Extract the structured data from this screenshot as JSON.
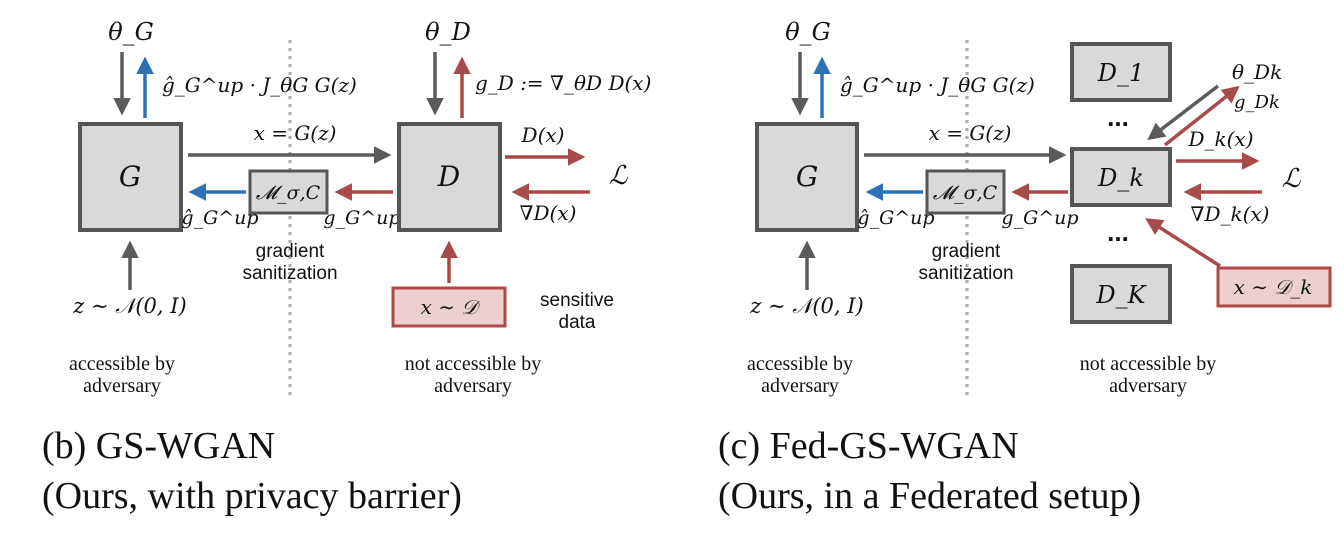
{
  "panel_b": {
    "theta_G": "θ_G",
    "gen_grad_up": "ĝ_G^up · J_θG G(z)",
    "x_eq_Gz": "x = G(z)",
    "G": "G",
    "D": "D",
    "theta_D": "θ_D",
    "gD_def": "g_D := ∇_θD D(x)",
    "D_of_x": "D(x)",
    "loss": "ℒ",
    "grad_D": "∇D(x)",
    "g_up": "g_G^up",
    "ghat_up": "ĝ_G^up",
    "mech": "𝓜_σ,C",
    "sanitization_1": "gradient",
    "sanitization_2": "sanitization",
    "z_dist": "z ∼ 𝒩(0, I)",
    "x_dist": "x ∼ 𝒟",
    "sensitive_1": "sensitive",
    "sensitive_2": "data",
    "accessible_1": "accessible by",
    "accessible_2": "adversary",
    "not_accessible_1": "not accessible by",
    "not_accessible_2": "adversary",
    "caption_1": "(b) GS-WGAN",
    "caption_2": "(Ours, with privacy barrier)"
  },
  "panel_c": {
    "theta_G": "θ_G",
    "gen_grad_up": "ĝ_G^up · J_θG G(z)",
    "x_eq_Gz": "x = G(z)",
    "G": "G",
    "D1": "D_1",
    "Dk": "D_k",
    "DK": "D_K",
    "dots": "...",
    "theta_Dk": "θ_Dk",
    "g_Dk": "g_Dk",
    "Dk_of_x": "D_k(x)",
    "loss": "ℒ",
    "grad_Dk": "∇D_k(x)",
    "g_up": "g_G^up",
    "ghat_up": "ĝ_G^up",
    "mech": "𝓜_σ,C",
    "sanitization_1": "gradient",
    "sanitization_2": "sanitization",
    "z_dist": "z ∼ 𝒩(0, I)",
    "x_dist": "x ∼ 𝒟_k",
    "accessible_1": "accessible by",
    "accessible_2": "adversary",
    "not_accessible_1": "not accessible by",
    "not_accessible_2": "adversary",
    "caption_1": "(c) Fed-GS-WGAN",
    "caption_2": "(Ours, in a Federated setup)"
  },
  "colors": {
    "forward": "#5b5b5b",
    "generator_update": "#2f72b4",
    "discriminator_gradient": "#a84a4a",
    "box_fill": "#d9d9d9",
    "data_fill": "#edcfcf"
  }
}
